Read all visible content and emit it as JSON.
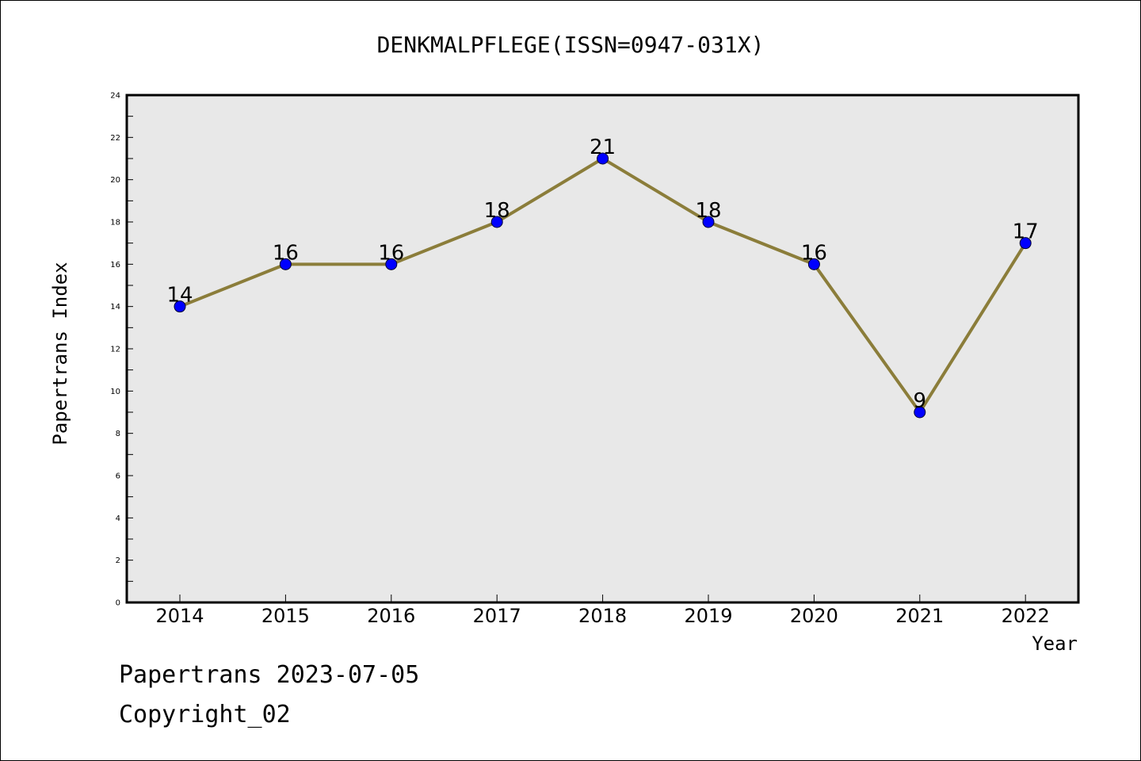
{
  "chart_data": {
    "type": "line",
    "title": "DENKMALPFLEGE(ISSN=0947-031X)",
    "xlabel": "Year",
    "ylabel": "Papertrans Index",
    "categories": [
      "2014",
      "2015",
      "2016",
      "2017",
      "2018",
      "2019",
      "2020",
      "2021",
      "2022"
    ],
    "values": [
      14,
      16,
      16,
      18,
      21,
      18,
      16,
      9,
      17
    ],
    "ylim": [
      0,
      24
    ],
    "yticks": [
      0,
      2,
      4,
      6,
      8,
      10,
      12,
      14,
      16,
      18,
      20,
      22,
      24
    ],
    "grid": false,
    "line_color": "#8b7d3a",
    "marker_color": "#0000ff",
    "plot_background": "#e8e8e8"
  },
  "footer": {
    "line1": "Papertrans 2023-07-05",
    "line2": "Copyright_02"
  }
}
